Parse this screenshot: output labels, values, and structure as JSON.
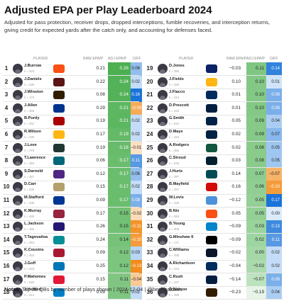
{
  "footer": {
    "label": "Notes:",
    "text": "Top 36 QBs by number of plays shown | 2024-12-04 | @benbbaldwin"
  },
  "colors": {
    "adj_high": "#4caf50",
    "adj_low": "#eaf6ea",
    "diff_pos": "#1a73d9",
    "diff_neg": "#f28c1c",
    "diff_neg_strong": "#7b2a8a",
    "diff_pos_light": "#dcebfb",
    "diff_neg_light": "#fde9d3"
  },
  "chart_data": {
    "type": "table",
    "title": "Adjusted EPA per Play Leaderboard 2024",
    "subtitle": "Adjusted for pass protection, receiver drops, dropped interceptions, fumble recoveries, and interception returns, giving credit for expected yards after the catch only, and accounting for defenses faced.",
    "columns": {
      "player": "PLAYER",
      "raw": "RAW EPA/P",
      "adj": "ADJ EPA/P",
      "diff": "DIFF"
    },
    "rows": [
      {
        "rank": 1,
        "name": "J.Burrow",
        "plays": "n = 533",
        "team": "CIN",
        "raw": "0.21",
        "adj": "0.26",
        "diff": "0.06"
      },
      {
        "rank": 2,
        "name": "J.Daniels",
        "plays": "n = 539",
        "team": "WAS",
        "raw": "0.22",
        "adj": "0.24",
        "diff": "0.02"
      },
      {
        "rank": 3,
        "name": "J.Winston",
        "plays": "n = 173",
        "team": "CLE",
        "raw": "0.08",
        "adj": "0.24",
        "diff": "0.16"
      },
      {
        "rank": 4,
        "name": "J.Allen",
        "plays": "n = 466",
        "team": "BUF",
        "raw": "0.29",
        "adj": "0.21",
        "diff": "−0.08"
      },
      {
        "rank": 5,
        "name": "B.Purdy",
        "plays": "n = 452",
        "team": "SF",
        "raw": "0.19",
        "adj": "0.21",
        "diff": "0.02"
      },
      {
        "rank": 6,
        "name": "R.Wilson",
        "plays": "n = 235",
        "team": "PIT",
        "raw": "0.17",
        "adj": "0.19",
        "diff": "0.02"
      },
      {
        "rank": 7,
        "name": "J.Love",
        "plays": "n = 379",
        "team": "GB",
        "raw": "0.19",
        "adj": "0.18",
        "diff": "−0.01"
      },
      {
        "rank": 8,
        "name": "T.Lawrence",
        "plays": "n = 363",
        "team": "JAX",
        "raw": "0.06",
        "adj": "0.17",
        "diff": "0.11"
      },
      {
        "rank": 9,
        "name": "S.Darnold",
        "plays": "n = 487",
        "team": "MIN",
        "raw": "0.12",
        "adj": "0.17",
        "diff": "0.06"
      },
      {
        "rank": 10,
        "name": "D.Carr",
        "plays": "n = 335",
        "team": "NO",
        "raw": "0.15",
        "adj": "0.17",
        "diff": "0.02"
      },
      {
        "rank": 11,
        "name": "M.Stafford",
        "plays": "n = 438",
        "team": "LA",
        "raw": "0.09",
        "adj": "0.17",
        "diff": "0.08"
      },
      {
        "rank": 12,
        "name": "K.Murray",
        "plays": "n = 426",
        "team": "ARI",
        "raw": "0.17",
        "adj": "0.15",
        "diff": "−0.02"
      },
      {
        "rank": 13,
        "name": "L.Jackson",
        "plays": "n = 465",
        "team": "BAL",
        "raw": "0.26",
        "adj": "0.15",
        "diff": "−0.11"
      },
      {
        "rank": 14,
        "name": "T.Tagovailoa",
        "plays": "n = 263",
        "team": "MIA",
        "raw": "0.24",
        "adj": "0.14",
        "diff": "−0.10"
      },
      {
        "rank": 15,
        "name": "K.Cousins",
        "plays": "n = 453",
        "team": "ATL",
        "raw": "0.09",
        "adj": "0.12",
        "diff": "0.03"
      },
      {
        "rank": 16,
        "name": "J.Goff",
        "plays": "n = 443",
        "team": "DET",
        "raw": "0.25",
        "adj": "0.12",
        "diff": "−0.13"
      },
      {
        "rank": 17,
        "name": "P.Mahomes",
        "plays": "n = 525",
        "team": "KC",
        "raw": "0.15",
        "adj": "0.11",
        "diff": "−0.04"
      },
      {
        "rank": 18,
        "name": "J.Herbert",
        "plays": "n = 413",
        "team": "LAC",
        "raw": "0.09",
        "adj": "0.11",
        "diff": "0.02"
      },
      {
        "rank": 19,
        "name": "D.Jones",
        "plays": "n = 395",
        "team": "NYG",
        "raw": "−0.03",
        "adj": "0.11",
        "diff": "0.14"
      },
      {
        "rank": 20,
        "name": "J.Fields",
        "plays": "n = 225",
        "team": "PIT",
        "raw": "0.10",
        "adj": "0.10",
        "diff": "0.01"
      },
      {
        "rank": 21,
        "name": "J.Flacco",
        "plays": "n = 214",
        "team": "IND",
        "raw": "0.01",
        "adj": "0.10",
        "diff": "0.08"
      },
      {
        "rank": 22,
        "name": "D.Prescott",
        "plays": "n = 343",
        "team": "DAL",
        "raw": "0.01",
        "adj": "0.10",
        "diff": "0.08"
      },
      {
        "rank": 23,
        "name": "G.Smith",
        "plays": "n = 544",
        "team": "SEA",
        "raw": "0.05",
        "adj": "0.09",
        "diff": "0.04"
      },
      {
        "rank": 24,
        "name": "D.Maye",
        "plays": "n = 343",
        "team": "NE",
        "raw": "0.02",
        "adj": "0.09",
        "diff": "0.07"
      },
      {
        "rank": 25,
        "name": "A.Rodgers",
        "plays": "n = 482",
        "team": "NYJ",
        "raw": "0.02",
        "adj": "0.08",
        "diff": "0.05"
      },
      {
        "rank": 26,
        "name": "C.Stroud",
        "plays": "n = 518",
        "team": "HOU",
        "raw": "0.03",
        "adj": "0.08",
        "diff": "0.05"
      },
      {
        "rank": 27,
        "name": "J.Hurts",
        "plays": "n = 397",
        "team": "PHI",
        "raw": "0.14",
        "adj": "0.07",
        "diff": "−0.07"
      },
      {
        "rank": 28,
        "name": "B.Mayfield",
        "plays": "n = 497",
        "team": "TB",
        "raw": "0.16",
        "adj": "0.06",
        "diff": "−0.10"
      },
      {
        "rank": 29,
        "name": "W.Levis",
        "plays": "n = 229",
        "team": "TEN",
        "raw": "−0.12",
        "adj": "0.05",
        "diff": "0.17"
      },
      {
        "rank": 30,
        "name": "B.Nix",
        "plays": "n = 526",
        "team": "DEN",
        "raw": "0.05",
        "adj": "0.05",
        "diff": "0.00"
      },
      {
        "rank": 31,
        "name": "B.Young",
        "plays": "n = 305",
        "team": "CAR",
        "raw": "−0.09",
        "adj": "0.03",
        "diff": "0.13"
      },
      {
        "rank": 32,
        "name": "G.Minshew II",
        "plays": "n = 171",
        "team": "LV",
        "raw": "−0.09",
        "adj": "0.02",
        "diff": "0.11"
      },
      {
        "rank": 33,
        "name": "C.Williams",
        "plays": "n = 458",
        "team": "CHI",
        "raw": "−0.02",
        "adj": "0.00",
        "diff": "0.02"
      },
      {
        "rank": 34,
        "name": "A.Richardson",
        "plays": "n = 244",
        "team": "IND",
        "raw": "−0.04",
        "adj": "−0.02",
        "diff": "0.02"
      },
      {
        "rank": 35,
        "name": "C.Rush",
        "plays": "n = 227",
        "team": "DAL",
        "raw": "−0.14",
        "adj": "−0.07",
        "diff": "0.08"
      },
      {
        "rank": 36,
        "name": "D.Watson",
        "plays": "n = 299",
        "team": "CLE",
        "raw": "−0.23",
        "adj": "−0.19",
        "diff": "0.04"
      }
    ],
    "team_logos": {
      "CIN": "#fb4f14",
      "WAS": "#5a1414",
      "CLE": "#311d00",
      "BUF": "#00338d",
      "SF": "#aa0000",
      "PIT": "#ffb612",
      "GB": "#203731",
      "JAX": "#006778",
      "MIN": "#4f2683",
      "NO": "#b4a06a",
      "LA": "#003594",
      "ARI": "#97233f",
      "BAL": "#241773",
      "MIA": "#008e97",
      "ATL": "#a71930",
      "DET": "#0076b6",
      "KC": "#e31837",
      "LAC": "#0080c6",
      "NYG": "#0b2265",
      "IND": "#002c5f",
      "DAL": "#041e42",
      "SEA": "#002244",
      "NE": "#002244",
      "NYJ": "#125740",
      "HOU": "#03202f",
      "PHI": "#004c54",
      "TB": "#d50a0a",
      "TEN": "#4b92db",
      "DEN": "#fb4f14",
      "CAR": "#0085ca",
      "LV": "#000000",
      "CHI": "#0b162a"
    }
  }
}
